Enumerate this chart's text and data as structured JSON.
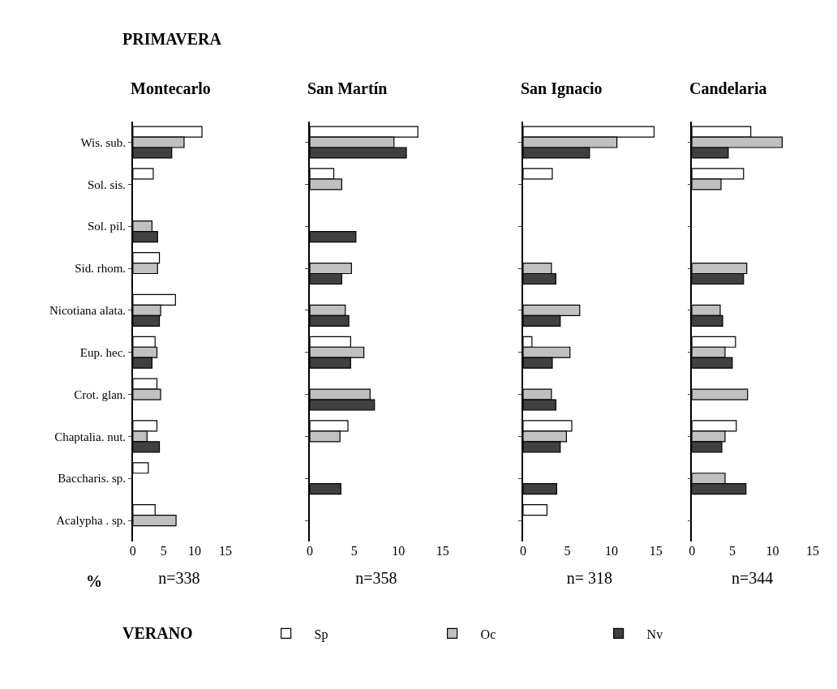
{
  "chart_data": [
    {
      "type": "bar",
      "orientation": "horizontal",
      "title": "Montecarlo",
      "xlabel": "n=338",
      "legend": "bottom",
      "annotations": [
        "PRIMAVERA",
        "%",
        "VERANO"
      ],
      "categories": [
        "Wis. sub.",
        "Sol. sis.",
        "Sol. pil.",
        "Sid. rhom.",
        "Nicotiana alata.",
        "Eup. hec.",
        "Crot. glan.",
        "Chaptalia. nut.",
        "Baccharis. sp.",
        "Acalypha . sp."
      ],
      "xlim": [
        0,
        15
      ],
      "xticks": [
        0,
        5,
        10,
        15
      ],
      "series": [
        {
          "name": "Sp",
          "color": "#ffffff",
          "values": [
            11.2,
            3.3,
            null,
            4.3,
            6.9,
            3.6,
            3.9,
            3.9,
            2.5,
            3.6
          ]
        },
        {
          "name": "Oc",
          "color": "#c0c0c0",
          "values": [
            8.3,
            null,
            3.1,
            4.0,
            4.5,
            3.9,
            4.5,
            2.3,
            null,
            7.0
          ]
        },
        {
          "name": "Nv",
          "color": "#404040",
          "values": [
            6.3,
            null,
            4.0,
            null,
            4.3,
            3.1,
            null,
            4.3,
            null,
            null
          ]
        }
      ]
    },
    {
      "type": "bar",
      "orientation": "horizontal",
      "title": "San Martín",
      "xlabel": "n=358",
      "categories": [
        null,
        null,
        null,
        null,
        null,
        null,
        null,
        null,
        null,
        null
      ],
      "xlim": [
        0,
        15
      ],
      "xticks": [
        0,
        5,
        10,
        15
      ],
      "series": [
        {
          "color": "#ffffff",
          "values": [
            12.2,
            2.7,
            null,
            null,
            null,
            4.6,
            null,
            4.3,
            null,
            null
          ]
        },
        {
          "color": "#c0c0c0",
          "values": [
            9.5,
            3.6,
            null,
            4.7,
            4.0,
            6.1,
            6.8,
            3.4,
            null,
            null
          ]
        },
        {
          "color": "#404040",
          "values": [
            10.9,
            null,
            5.2,
            3.6,
            4.4,
            4.6,
            7.3,
            null,
            3.5,
            null
          ]
        }
      ]
    },
    {
      "type": "bar",
      "orientation": "horizontal",
      "title": "San Ignacio",
      "xlabel": "n= 318",
      "categories": [
        null,
        null,
        null,
        null,
        null,
        null,
        null,
        null,
        null,
        null
      ],
      "xlim": [
        0,
        15
      ],
      "xticks": [
        0,
        5,
        10,
        15
      ],
      "series": [
        {
          "color": "#ffffff",
          "values": [
            14.8,
            3.3,
            null,
            null,
            null,
            1.0,
            null,
            5.5,
            null,
            2.7
          ]
        },
        {
          "color": "#c0c0c0",
          "values": [
            10.6,
            null,
            null,
            3.2,
            6.4,
            5.3,
            3.2,
            4.9,
            null,
            null
          ]
        },
        {
          "color": "#404040",
          "values": [
            7.5,
            null,
            null,
            3.7,
            4.2,
            3.3,
            3.7,
            4.2,
            3.8,
            null
          ]
        }
      ]
    },
    {
      "type": "bar",
      "orientation": "horizontal",
      "title": "Candelaria",
      "xlabel": "n=344",
      "categories": [
        null,
        null,
        null,
        null,
        null,
        null,
        null,
        null,
        null,
        null
      ],
      "xlim": [
        0,
        15
      ],
      "xticks": [
        0,
        5,
        10,
        15
      ],
      "series": [
        {
          "color": "#ffffff",
          "values": [
            7.3,
            6.4,
            null,
            null,
            null,
            5.4,
            null,
            5.5,
            null,
            null
          ]
        },
        {
          "color": "#c0c0c0",
          "values": [
            11.2,
            3.6,
            null,
            6.8,
            3.5,
            4.1,
            6.9,
            4.1,
            4.1,
            null
          ]
        },
        {
          "color": "#404040",
          "values": [
            4.5,
            null,
            null,
            6.4,
            3.8,
            5.0,
            null,
            3.7,
            6.7,
            null
          ]
        }
      ]
    }
  ]
}
